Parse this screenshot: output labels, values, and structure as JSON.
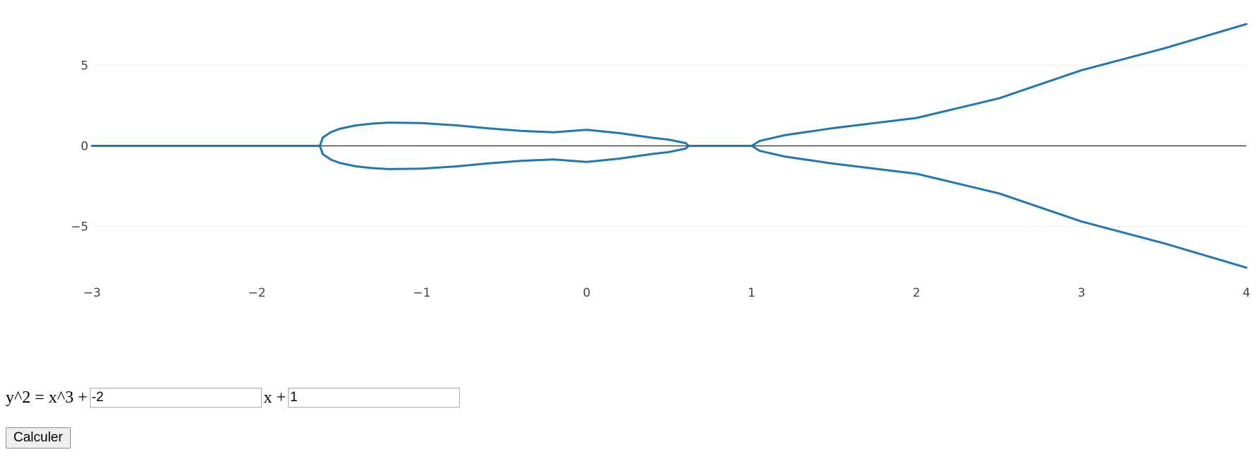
{
  "chart_data": {
    "type": "line",
    "curve": {
      "a": -2,
      "b": 1
    },
    "xlim": [
      -3,
      4
    ],
    "ylim": [
      -7.6,
      7.6
    ],
    "x_ticks": [
      -3,
      -2,
      -1,
      0,
      1,
      2,
      3,
      4
    ],
    "x_tick_labels": [
      "−3",
      "−2",
      "−1",
      "0",
      "1",
      "2",
      "3",
      "4"
    ],
    "y_ticks": [
      5,
      0,
      -5
    ],
    "y_tick_labels": [
      "5",
      "0",
      "−5"
    ],
    "grid": true,
    "zero_line": true,
    "series_color": "#1f77b4",
    "series": [
      {
        "x": [
          -3,
          -2.5,
          -2,
          -1.618
        ],
        "y": [
          0,
          0,
          0,
          0
        ]
      },
      {
        "x": [
          -1.618,
          -1.6,
          -1.55,
          -1.5,
          -1.4,
          -1.3,
          -1.2,
          -1.0,
          -0.8,
          -0.6,
          -0.4,
          -0.2,
          0.0,
          0.2,
          0.4,
          0.5,
          0.6,
          0.618
        ],
        "y": [
          0,
          0.52,
          0.86,
          1.05,
          1.27,
          1.38,
          1.44,
          1.41,
          1.28,
          1.09,
          0.93,
          0.84,
          1.0,
          0.79,
          0.5,
          0.38,
          0.17,
          0
        ]
      },
      {
        "x": [
          -1.618,
          -1.6,
          -1.55,
          -1.5,
          -1.4,
          -1.3,
          -1.2,
          -1.0,
          -0.8,
          -0.6,
          -0.4,
          -0.2,
          0.0,
          0.2,
          0.4,
          0.5,
          0.6,
          0.618
        ],
        "y": [
          0,
          -0.52,
          -0.86,
          -1.05,
          -1.27,
          -1.38,
          -1.44,
          -1.41,
          -1.28,
          -1.09,
          -0.93,
          -0.84,
          -1.0,
          -0.79,
          -0.5,
          -0.38,
          -0.17,
          0
        ]
      },
      {
        "x": [
          0.618,
          0.8,
          1.0
        ],
        "y": [
          0,
          0,
          0
        ]
      },
      {
        "x": [
          1.0,
          1.05,
          1.2,
          1.5,
          2.0,
          2.5,
          3.0,
          3.5,
          4.0
        ],
        "y": [
          0,
          0.31,
          0.66,
          1.11,
          1.73,
          2.95,
          4.69,
          6.04,
          7.55
        ]
      },
      {
        "x": [
          1.0,
          1.05,
          1.2,
          1.5,
          2.0,
          2.5,
          3.0,
          3.5,
          4.0
        ],
        "y": [
          0,
          -0.31,
          -0.66,
          -1.11,
          -1.73,
          -2.95,
          -4.69,
          -6.04,
          -7.55
        ]
      }
    ]
  },
  "form": {
    "eq_prefix": "y^2 = x^3 +",
    "eq_middle": "x +",
    "a_value": "-2",
    "b_value": "1",
    "button_label": "Calculer"
  }
}
